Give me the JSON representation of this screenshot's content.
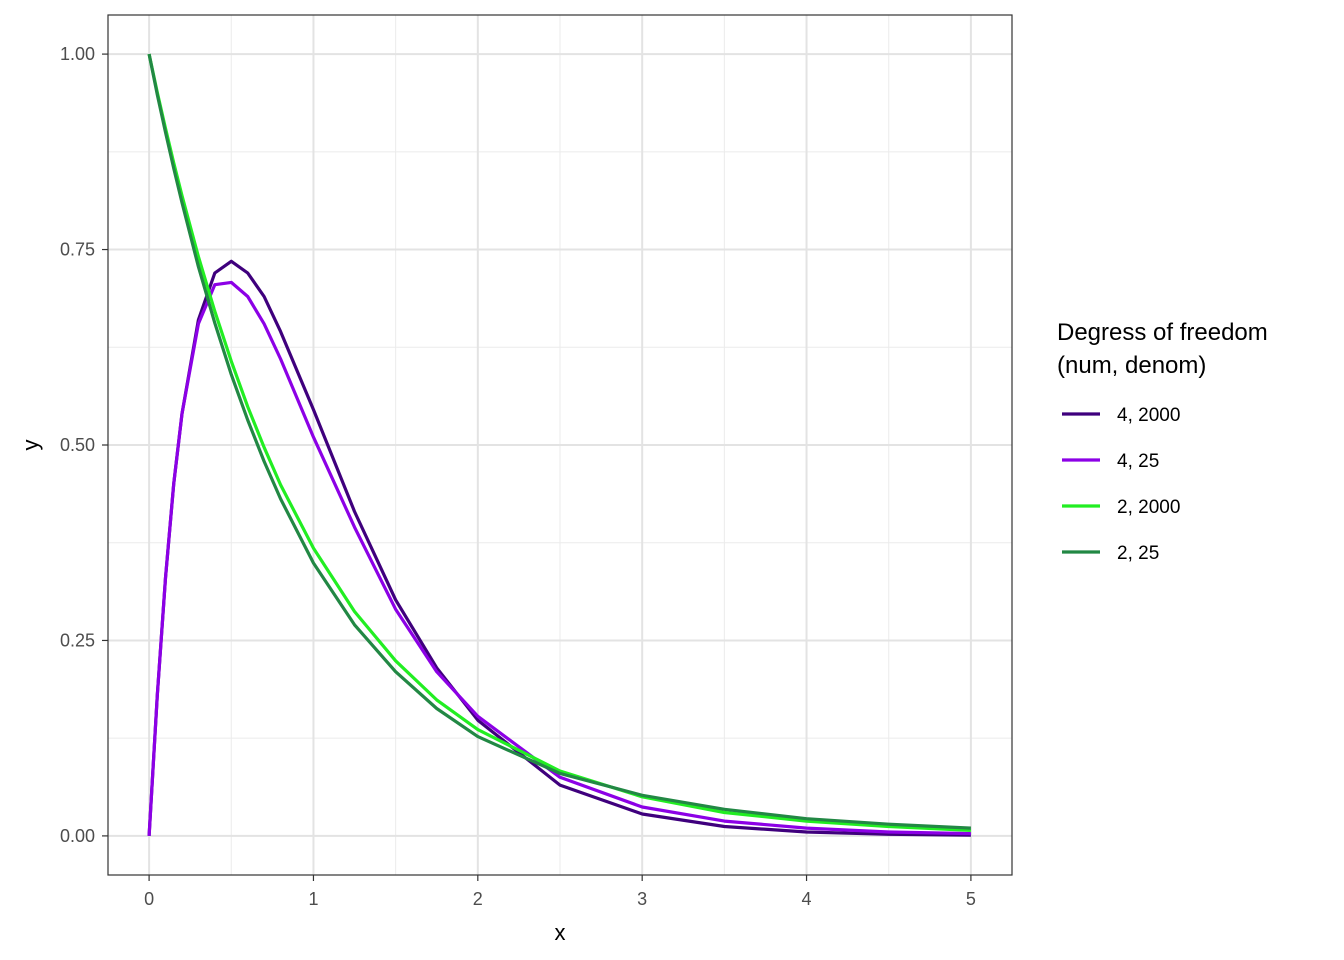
{
  "chart_data": {
    "type": "line",
    "xlabel": "x",
    "ylabel": "y",
    "xlim": [
      -0.25,
      5.25
    ],
    "ylim": [
      -0.05,
      1.05
    ],
    "x_ticks": [
      0,
      1,
      2,
      3,
      4,
      5
    ],
    "x_tick_labels": [
      "0",
      "1",
      "2",
      "3",
      "4",
      "5"
    ],
    "y_ticks": [
      0,
      0.25,
      0.5,
      0.75,
      1.0
    ],
    "y_tick_labels": [
      "0.00",
      "0.25",
      "0.50",
      "0.75",
      "1.00"
    ],
    "grid": true,
    "legend": {
      "title_lines": [
        "Degress of freedom",
        "(num, denom)"
      ],
      "position": "right"
    },
    "x": [
      0,
      0.05,
      0.1,
      0.15,
      0.2,
      0.3,
      0.4,
      0.5,
      0.6,
      0.7,
      0.8,
      1.0,
      1.25,
      1.5,
      1.75,
      2.0,
      2.5,
      3.0,
      3.5,
      4.0,
      4.5,
      5.0
    ],
    "series": [
      {
        "name": "4, 2000",
        "color": "#3f007d",
        "values": [
          0,
          0.18,
          0.33,
          0.45,
          0.54,
          0.66,
          0.72,
          0.735,
          0.72,
          0.69,
          0.645,
          0.545,
          0.415,
          0.302,
          0.215,
          0.148,
          0.065,
          0.028,
          0.012,
          0.005,
          0.002,
          0.001
        ]
      },
      {
        "name": "4, 25",
        "color": "#8c00e6",
        "values": [
          0,
          0.18,
          0.33,
          0.45,
          0.54,
          0.655,
          0.705,
          0.708,
          0.69,
          0.655,
          0.61,
          0.51,
          0.395,
          0.29,
          0.21,
          0.153,
          0.075,
          0.037,
          0.019,
          0.01,
          0.005,
          0.003
        ]
      },
      {
        "name": "2, 2000",
        "color": "#22ee22",
        "values": [
          1.0,
          0.951,
          0.905,
          0.861,
          0.819,
          0.741,
          0.671,
          0.607,
          0.549,
          0.497,
          0.449,
          0.368,
          0.287,
          0.224,
          0.174,
          0.136,
          0.083,
          0.05,
          0.03,
          0.019,
          0.012,
          0.007
        ]
      },
      {
        "name": "2, 25",
        "color": "#228844",
        "values": [
          1.0,
          0.948,
          0.9,
          0.854,
          0.81,
          0.728,
          0.656,
          0.59,
          0.532,
          0.479,
          0.431,
          0.349,
          0.27,
          0.21,
          0.163,
          0.127,
          0.08,
          0.052,
          0.034,
          0.022,
          0.015,
          0.01
        ]
      }
    ]
  }
}
